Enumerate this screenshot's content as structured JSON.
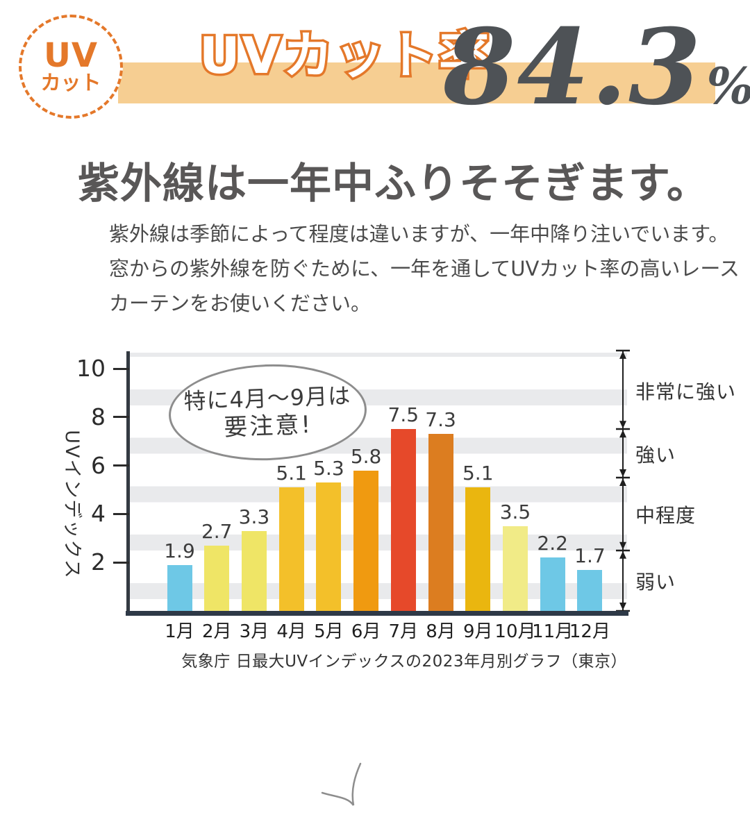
{
  "badge": {
    "line1": "UV",
    "line2": "カット"
  },
  "banner": {
    "title": "UVカット率",
    "value": "84.3",
    "unit": "%"
  },
  "heading": "紫外線は一年中ふりそそぎます。",
  "body_lines": [
    "紫外線は季節によって程度は違いますが、一年中降り注いでいます。",
    "窓からの紫外線を防ぐために、一年を通してUVカット率の高いレース",
    "カーテンをお使いください。"
  ],
  "callout": {
    "line1": "特に4月〜9月は",
    "line2": "要注意!"
  },
  "chart_data": {
    "type": "bar",
    "categories": [
      "1月",
      "2月",
      "3月",
      "4月",
      "5月",
      "6月",
      "7月",
      "8月",
      "9月",
      "10月",
      "11月",
      "12月"
    ],
    "values": [
      1.9,
      2.7,
      3.3,
      5.1,
      5.3,
      5.8,
      7.5,
      7.3,
      5.1,
      3.5,
      2.2,
      1.7
    ],
    "bar_colors": [
      "#6EC8E6",
      "#EFE566",
      "#EFE566",
      "#F3C02A",
      "#F3C02A",
      "#F09A10",
      "#E6492A",
      "#DC7D20",
      "#EAB60F",
      "#F1EB87",
      "#6EC8E6",
      "#6EC8E6"
    ],
    "ylabel": "UVインデックス",
    "yticks": [
      2,
      4,
      6,
      8,
      10
    ],
    "ylim": [
      0,
      10.75
    ],
    "grid": "horizontal striped bands",
    "legend_position": "none",
    "right_scale": [
      {
        "label": "非常に強い",
        "from": 7.5,
        "to": 10.75
      },
      {
        "label": "強い",
        "from": 5.5,
        "to": 7.5
      },
      {
        "label": "中程度",
        "from": 2.5,
        "to": 5.5
      },
      {
        "label": "弱い",
        "from": 0,
        "to": 2.5
      }
    ],
    "caption": "気象庁 日最大UVインデックスの2023年月別グラフ（東京）"
  },
  "colors": {
    "accent_orange": "#E4782A",
    "banner_bg": "#F6CE92",
    "value_text": "#4E5256",
    "heading_text": "#595757",
    "axis_dark": "#2E3947",
    "stripe_gray": "#E9EAEC",
    "bubble_border": "#8D8D8D"
  }
}
